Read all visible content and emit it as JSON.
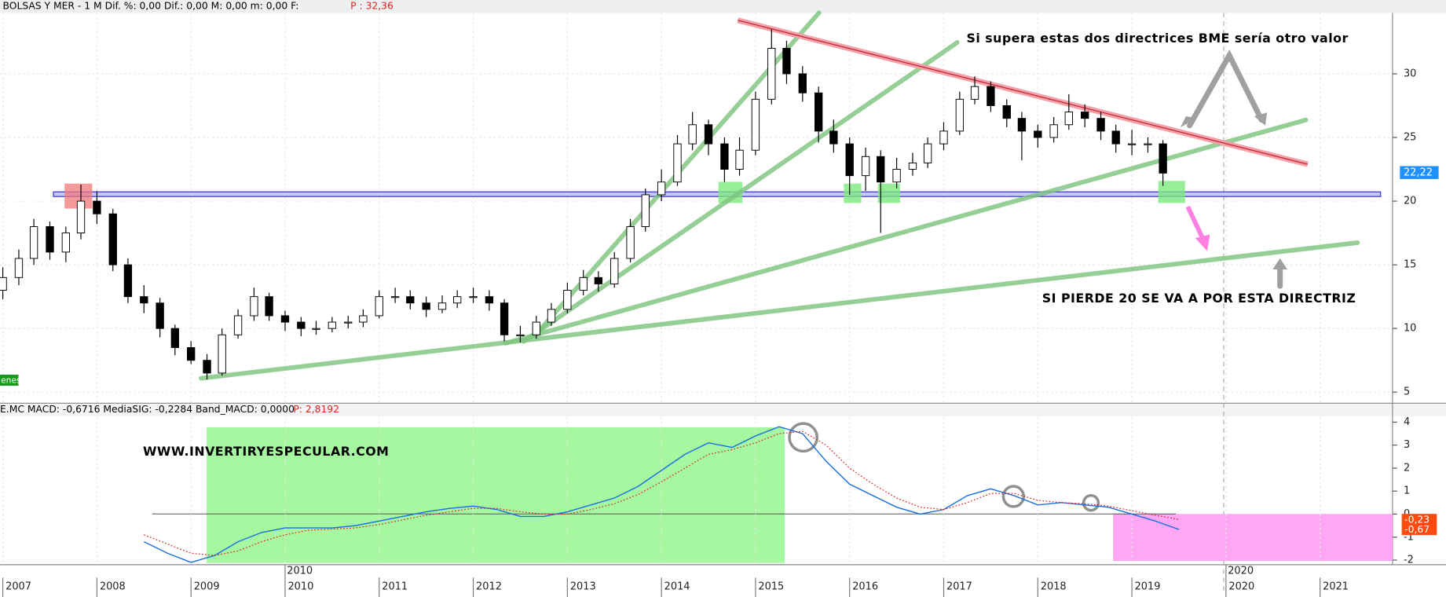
{
  "header": {
    "symbol_info": "BOLSAS Y MER -   1 M Dif. %: 0,00 Dif.: 0,00 M: 0,00 m: 0,00 F:",
    "price_info": "P : 32,36"
  },
  "chart_data": [
    {
      "type": "candlestick",
      "annotations": {
        "top_note": "Si supera estas dos directrices BME sería otro valor",
        "bottom_note": "SI PIERDE 20 SE VA A POR ESTA DIRECTRIZ",
        "last_price_label": "22,22",
        "volume_tag": "enes"
      },
      "x": [
        2007,
        2007.17,
        2007.33,
        2007.5,
        2007.67,
        2007.83,
        2008,
        2008.17,
        2008.33,
        2008.5,
        2008.67,
        2008.83,
        2009,
        2009.17,
        2009.33,
        2009.5,
        2009.67,
        2009.83,
        2010,
        2010.17,
        2010.33,
        2010.5,
        2010.67,
        2010.83,
        2011,
        2011.17,
        2011.33,
        2011.5,
        2011.67,
        2011.83,
        2012,
        2012.17,
        2012.33,
        2012.5,
        2012.67,
        2012.83,
        2013,
        2013.17,
        2013.33,
        2013.5,
        2013.67,
        2013.83,
        2014,
        2014.17,
        2014.33,
        2014.5,
        2014.67,
        2014.83,
        2015,
        2015.17,
        2015.33,
        2015.5,
        2015.67,
        2015.83,
        2016,
        2016.17,
        2016.33,
        2016.5,
        2016.67,
        2016.83,
        2017,
        2017.17,
        2017.33,
        2017.5,
        2017.67,
        2017.83,
        2018,
        2018.17,
        2018.33,
        2018.5,
        2018.67,
        2018.83,
        2019,
        2019.17,
        2019.33
      ],
      "open": [
        13,
        14,
        15.5,
        18,
        16,
        17.5,
        20,
        19,
        15,
        12.5,
        12,
        10,
        8.5,
        7.5,
        6.5,
        9.5,
        11,
        12.5,
        11,
        10.5,
        10,
        10,
        10.5,
        10.5,
        11,
        12.5,
        12.5,
        12,
        11.5,
        12,
        12.5,
        12.5,
        12,
        9.5,
        9.5,
        10.5,
        11.5,
        13,
        14,
        13.5,
        15.5,
        18,
        20.5,
        21.5,
        24.5,
        26,
        24.5,
        22.5,
        24,
        28,
        32,
        30,
        28.5,
        25.5,
        24.5,
        22,
        23.5,
        21.5,
        22.5,
        23,
        24.5,
        25.5,
        28,
        29,
        27.5,
        26.5,
        25.5,
        25,
        26,
        27,
        26.5,
        25.5,
        24.5,
        24.5,
        24.5
      ],
      "high": [
        14.8,
        16.2,
        18.6,
        18.4,
        18,
        21.3,
        20.8,
        19.4,
        15.5,
        13.4,
        12.4,
        10.3,
        9,
        8,
        10,
        11.5,
        13.2,
        12.8,
        11.4,
        10.9,
        10.6,
        10.9,
        11,
        11.5,
        13,
        13.2,
        13,
        12.5,
        12.6,
        13,
        13.2,
        13,
        12.3,
        10.2,
        11,
        12,
        13.6,
        14.6,
        14.5,
        16,
        18.6,
        21,
        22.5,
        25.2,
        27,
        26.4,
        25,
        25,
        28.6,
        33.5,
        32.6,
        30.6,
        29,
        26.4,
        25,
        24.2,
        24,
        23.4,
        23.8,
        25,
        26.2,
        28.6,
        29.8,
        29.4,
        28,
        27,
        26,
        26.6,
        28.4,
        27.6,
        27,
        26,
        25.6,
        25,
        24.8
      ],
      "low": [
        12.3,
        13.4,
        15,
        15.4,
        15.2,
        17,
        18.2,
        14.5,
        12,
        11.2,
        9.3,
        7.9,
        7.2,
        6,
        6.3,
        9.2,
        10.6,
        10.6,
        9.8,
        9.4,
        9.5,
        9.7,
        10,
        10.1,
        10.8,
        12,
        11.5,
        10.9,
        11.2,
        11.6,
        12,
        11.4,
        9,
        8.9,
        9.2,
        10.2,
        11.2,
        12.6,
        12.9,
        13.2,
        15.2,
        17.6,
        20,
        21.2,
        24,
        23.6,
        21.5,
        22,
        23.6,
        27.6,
        29.2,
        27.8,
        24.6,
        23.8,
        20.5,
        20.8,
        17.5,
        21,
        22,
        22.6,
        24,
        25.2,
        27.6,
        27,
        25.8,
        23.2,
        24.2,
        24.6,
        25.6,
        25.8,
        24.8,
        23.8,
        23.6,
        23.8,
        21.2
      ],
      "close": [
        14,
        15.5,
        18,
        16,
        17.5,
        20,
        19,
        15,
        12.5,
        12,
        10,
        8.5,
        7.5,
        6.5,
        9.5,
        11,
        12.5,
        11,
        10.5,
        10,
        10,
        10.5,
        10.5,
        11,
        12.5,
        12.5,
        12,
        11.5,
        12,
        12.5,
        12.5,
        12,
        9.5,
        9.5,
        10.5,
        11.5,
        13,
        14,
        13.5,
        15.5,
        18,
        20.5,
        21.5,
        24.5,
        26,
        24.5,
        22.5,
        24,
        28,
        32,
        30,
        28.5,
        25.5,
        24.5,
        22,
        23.5,
        21.5,
        22.5,
        23,
        24.5,
        25.5,
        28,
        29,
        27.5,
        26.5,
        25.5,
        25,
        26,
        27,
        26.5,
        25.5,
        24.5,
        24.5,
        24.5,
        22.2
      ],
      "color_up": "#ffffff",
      "color_down": "#000000",
      "xlim": [
        2006.97,
        2021.77
      ],
      "ylim": [
        4.13,
        34.78
      ],
      "yticks": [
        5,
        10,
        15,
        20,
        25,
        30
      ],
      "grid": true
    },
    {
      "type": "line",
      "header": "E.MC MACD: -0,6716 MediaSIG: -0,2284 Band_MACD: 0,0000",
      "header_p": "P: 2,8192",
      "watermark": "WWW.INVERTIRYESPECULAR.COM",
      "x": [
        2008.5,
        2008.75,
        2009,
        2009.25,
        2009.5,
        2009.75,
        2010,
        2010.25,
        2010.5,
        2010.75,
        2011,
        2011.25,
        2011.5,
        2011.75,
        2012,
        2012.25,
        2012.5,
        2012.75,
        2013,
        2013.25,
        2013.5,
        2013.75,
        2014,
        2014.25,
        2014.5,
        2014.75,
        2015,
        2015.25,
        2015.5,
        2015.75,
        2016,
        2016.25,
        2016.5,
        2016.75,
        2017,
        2017.25,
        2017.5,
        2017.75,
        2018,
        2018.25,
        2018.5,
        2018.75,
        2019,
        2019.25,
        2019.5
      ],
      "series": [
        {
          "color": "#1a6fe0",
          "style": "solid",
          "end_label": "-0,67",
          "values": [
            -1.2,
            -1.7,
            -2.1,
            -1.8,
            -1.2,
            -0.8,
            -0.6,
            -0.6,
            -0.6,
            -0.5,
            -0.3,
            -0.1,
            0.1,
            0.25,
            0.35,
            0.2,
            -0.1,
            -0.1,
            0.1,
            0.4,
            0.7,
            1.2,
            1.9,
            2.6,
            3.1,
            2.9,
            3.4,
            3.8,
            3.5,
            2.3,
            1.3,
            0.8,
            0.3,
            0.0,
            0.2,
            0.8,
            1.1,
            0.8,
            0.4,
            0.5,
            0.4,
            0.3,
            0.0,
            -0.3,
            -0.67
          ]
        },
        {
          "color": "#e02020",
          "style": "dotted",
          "end_label": "-0,23",
          "values": [
            -0.9,
            -1.3,
            -1.7,
            -1.8,
            -1.6,
            -1.2,
            -0.9,
            -0.7,
            -0.65,
            -0.6,
            -0.45,
            -0.25,
            -0.05,
            0.1,
            0.25,
            0.25,
            0.1,
            0.0,
            0.0,
            0.2,
            0.45,
            0.85,
            1.4,
            2.0,
            2.6,
            2.8,
            3.1,
            3.5,
            3.6,
            3.0,
            2.0,
            1.3,
            0.7,
            0.3,
            0.2,
            0.5,
            0.9,
            0.9,
            0.6,
            0.5,
            0.45,
            0.35,
            0.15,
            -0.05,
            -0.23
          ]
        }
      ],
      "xlim": [
        2006.97,
        2021.77
      ],
      "ylim": [
        -2.2,
        4.22
      ],
      "yticks": [
        -2,
        -1,
        0,
        1,
        2,
        3,
        4
      ],
      "xticks": [
        2007,
        2008,
        2009,
        2010,
        2011,
        2012,
        2013,
        2014,
        2015,
        2016,
        2017,
        2018,
        2019,
        2020,
        2021
      ],
      "decade_ticks": [
        2010,
        2020
      ],
      "grid": true
    }
  ]
}
